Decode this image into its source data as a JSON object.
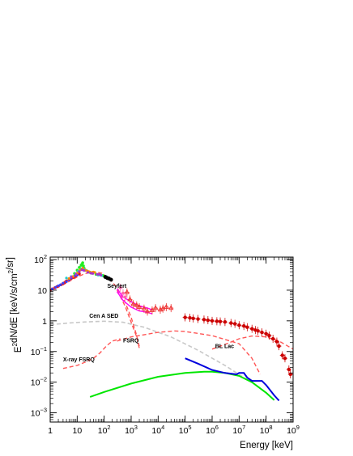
{
  "chart_data": {
    "type": "scatter",
    "title": "",
    "xlabel": "Energy [keV]",
    "ylabel": "E²dN/dE [keV/s/cm²/sr]",
    "x_scale": "log",
    "y_scale": "log",
    "xlim": [
      1,
      1000000000
    ],
    "ylim": [
      0.0005,
      120
    ],
    "grid": false,
    "x_ticks": [
      {
        "value": 1,
        "label": "1",
        "sup": ""
      },
      {
        "value": 10,
        "label": "10",
        "sup": ""
      },
      {
        "value": 100,
        "label": "10",
        "sup": "2"
      },
      {
        "value": 1000,
        "label": "10",
        "sup": "3"
      },
      {
        "value": 10000,
        "label": "10",
        "sup": "4"
      },
      {
        "value": 100000,
        "label": "10",
        "sup": "5"
      },
      {
        "value": 1000000,
        "label": "10",
        "sup": "6"
      },
      {
        "value": 10000000,
        "label": "10",
        "sup": "7"
      },
      {
        "value": 100000000,
        "label": "10",
        "sup": "8"
      },
      {
        "value": 1000000000,
        "label": "10",
        "sup": "9"
      }
    ],
    "y_ticks": [
      {
        "value": 0.001,
        "label": "10",
        "sup": "−3"
      },
      {
        "value": 0.01,
        "label": "10",
        "sup": "−2"
      },
      {
        "value": 0.1,
        "label": "10",
        "sup": "−1"
      },
      {
        "value": 1,
        "label": "1",
        "sup": ""
      },
      {
        "value": 10,
        "label": "10",
        "sup": ""
      },
      {
        "value": 100,
        "label": "10",
        "sup": "2"
      }
    ],
    "annotations": [
      {
        "text": "Seyfert",
        "x": 130,
        "y": 12
      },
      {
        "text": "Cen A SED",
        "x": 28,
        "y": 1.25
      },
      {
        "text": "FSRQ",
        "x": 500,
        "y": 0.2
      },
      {
        "text": "BL Lac",
        "x": 1300000,
        "y": 0.13
      },
      {
        "text": "X-ray FSRQ",
        "x": 3,
        "y": 0.048
      }
    ],
    "series": [
      {
        "id": "seyfert-curve",
        "kind": "line",
        "color": "#ff5555",
        "dash": "5,3",
        "width": 1.4,
        "points": [
          [
            1,
            10.5
          ],
          [
            3,
            15
          ],
          [
            10,
            27
          ],
          [
            20,
            35
          ],
          [
            40,
            40
          ],
          [
            80,
            36
          ],
          [
            150,
            25
          ],
          [
            300,
            12
          ],
          [
            600,
            4
          ],
          [
            1000,
            1.3
          ],
          [
            1500,
            0.4
          ],
          [
            2000,
            0.15
          ]
        ]
      },
      {
        "id": "seyfert-tail",
        "kind": "line",
        "color": "#ff5555",
        "dash": "5,3",
        "width": 1.4,
        "points": [
          [
            300,
            10
          ],
          [
            600,
            3
          ],
          [
            1000,
            0.9
          ],
          [
            1600,
            0.3
          ],
          [
            2000,
            0.13
          ]
        ]
      },
      {
        "id": "cena-sed",
        "kind": "line",
        "color": "#c8c8c8",
        "dash": "5,3",
        "width": 1.6,
        "points": [
          [
            1,
            0.75
          ],
          [
            5,
            0.85
          ],
          [
            20,
            0.92
          ],
          [
            100,
            0.97
          ],
          [
            500,
            0.9
          ],
          [
            3000,
            0.62
          ],
          [
            30000,
            0.3
          ],
          [
            300000,
            0.11
          ],
          [
            3000000,
            0.035
          ],
          [
            20000000,
            0.012
          ]
        ]
      },
      {
        "id": "fsrq",
        "kind": "line",
        "color": "#ff5555",
        "dash": "5,3",
        "width": 1.4,
        "points": [
          [
            300,
            0.22
          ],
          [
            1000,
            0.3
          ],
          [
            10000,
            0.42
          ],
          [
            40000,
            0.47
          ],
          [
            100000,
            0.45
          ],
          [
            1000000,
            0.33
          ],
          [
            10000000,
            0.18
          ],
          [
            30000000,
            0.06
          ],
          [
            60000000,
            0.018
          ]
        ]
      },
      {
        "id": "bllac",
        "kind": "line",
        "color": "#ff5555",
        "dash": "5,3",
        "width": 1.4,
        "points": [
          [
            1000000,
            0.12
          ],
          [
            3000000,
            0.17
          ],
          [
            10000000,
            0.26
          ],
          [
            30000000,
            0.32
          ],
          [
            100000000,
            0.3
          ],
          [
            300000000,
            0.22
          ],
          [
            1000000000,
            0.12
          ]
        ]
      },
      {
        "id": "xray-fsrq",
        "kind": "line",
        "color": "#ff5555",
        "dash": "5,3",
        "width": 1.4,
        "points": [
          [
            3,
            0.028
          ],
          [
            10,
            0.035
          ],
          [
            20,
            0.045
          ],
          [
            40,
            0.06
          ],
          [
            70,
            0.09
          ],
          [
            120,
            0.15
          ],
          [
            200,
            0.22
          ],
          [
            400,
            0.26
          ]
        ]
      },
      {
        "id": "green-model",
        "kind": "line",
        "color": "#00e600",
        "dash": "",
        "width": 2,
        "points": [
          [
            30,
            0.0033
          ],
          [
            100,
            0.0048
          ],
          [
            1000,
            0.009
          ],
          [
            10000,
            0.015
          ],
          [
            100000,
            0.02
          ],
          [
            500000,
            0.022
          ],
          [
            1000000,
            0.022
          ],
          [
            3000000,
            0.02
          ],
          [
            10000000,
            0.016
          ],
          [
            30000000,
            0.01
          ],
          [
            100000000,
            0.0045
          ],
          [
            200000000,
            0.0026
          ]
        ]
      },
      {
        "id": "blue-model",
        "kind": "line",
        "color": "#0000dd",
        "dash": "",
        "width": 2,
        "points": [
          [
            100000,
            0.06
          ],
          [
            300000,
            0.04
          ],
          [
            1000000,
            0.025
          ],
          [
            3000000,
            0.02
          ],
          [
            8000000,
            0.018
          ],
          [
            10000000,
            0.02
          ],
          [
            15000000,
            0.02
          ],
          [
            20000000,
            0.014
          ],
          [
            30000000,
            0.011
          ],
          [
            70000000,
            0.011
          ],
          [
            100000000,
            0.008
          ],
          [
            200000000,
            0.0037
          ],
          [
            300000000,
            0.0025
          ]
        ]
      },
      {
        "id": "magenta-upper",
        "kind": "line",
        "color": "#ff00ff",
        "dash": "",
        "width": 1.4,
        "points": [
          [
            300,
            11
          ],
          [
            500,
            6
          ],
          [
            1000,
            4.2
          ],
          [
            2000,
            3.1
          ],
          [
            4000,
            2.6
          ],
          [
            6000,
            2.3
          ]
        ]
      },
      {
        "id": "magenta-lower",
        "kind": "line",
        "color": "#ff00ff",
        "dash": "",
        "width": 1.4,
        "points": [
          [
            300,
            9
          ],
          [
            500,
            4.6
          ],
          [
            1000,
            2.8
          ],
          [
            2000,
            2.1
          ],
          [
            4000,
            1.9
          ],
          [
            6000,
            1.7
          ]
        ]
      },
      {
        "id": "red-points-xray",
        "kind": "points",
        "color": "#ee1111",
        "size": 1.8,
        "points": [
          [
            1,
            10
          ],
          [
            1.2,
            11
          ],
          [
            1.5,
            12
          ],
          [
            1.8,
            13
          ],
          [
            2,
            13.5
          ],
          [
            2.5,
            15
          ],
          [
            3,
            16.5
          ],
          [
            3.5,
            18
          ],
          [
            4,
            20
          ],
          [
            5,
            22
          ],
          [
            6,
            24
          ],
          [
            7,
            26
          ],
          [
            8,
            28
          ],
          [
            9,
            30
          ],
          [
            10,
            32
          ],
          [
            12,
            34
          ]
        ]
      },
      {
        "id": "blue-points",
        "kind": "points",
        "color": "#3344ff",
        "size": 1.6,
        "points": [
          [
            1.2,
            11
          ],
          [
            1.6,
            12.5
          ],
          [
            2,
            14
          ],
          [
            2.4,
            15
          ],
          [
            3,
            17
          ],
          [
            4,
            19
          ],
          [
            5,
            22
          ],
          [
            6,
            25
          ],
          [
            8,
            29
          ],
          [
            10,
            31
          ]
        ]
      },
      {
        "id": "green-points",
        "kind": "points",
        "color": "#22ee22",
        "size": 1.8,
        "points": [
          [
            8,
            35
          ],
          [
            10,
            45
          ],
          [
            12,
            55
          ],
          [
            14,
            65
          ],
          [
            15,
            70
          ],
          [
            16,
            78
          ],
          [
            17,
            62
          ],
          [
            18,
            52
          ],
          [
            20,
            45
          ],
          [
            25,
            40
          ],
          [
            30,
            38
          ],
          [
            35,
            36
          ],
          [
            50,
            33
          ],
          [
            70,
            32
          ],
          [
            90,
            30
          ]
        ]
      },
      {
        "id": "cyan-points",
        "kind": "points",
        "color": "#22cccc",
        "size": 1.6,
        "points": [
          [
            4,
            25
          ],
          [
            6,
            28
          ],
          [
            9,
            35
          ],
          [
            11,
            42
          ],
          [
            14,
            50
          ],
          [
            18,
            48
          ],
          [
            22,
            44
          ],
          [
            60,
            31
          ],
          [
            80,
            30
          ],
          [
            120,
            28
          ]
        ]
      },
      {
        "id": "orange-points",
        "kind": "points",
        "color": "#ff8800",
        "size": 1.6,
        "points": [
          [
            5,
            24
          ],
          [
            7,
            28
          ],
          [
            10,
            36
          ],
          [
            13,
            46
          ],
          [
            16,
            52
          ],
          [
            20,
            45
          ],
          [
            24,
            42
          ],
          [
            28,
            40
          ],
          [
            35,
            38
          ],
          [
            40,
            39
          ],
          [
            45,
            38
          ]
        ]
      },
      {
        "id": "purple-points",
        "kind": "points",
        "color": "#aa33cc",
        "size": 1.6,
        "points": [
          [
            6,
            27
          ],
          [
            9,
            33
          ],
          [
            12,
            40
          ],
          [
            15,
            46
          ],
          [
            18,
            44
          ],
          [
            25,
            38
          ],
          [
            32,
            36
          ],
          [
            38,
            35
          ],
          [
            55,
            33
          ],
          [
            65,
            33
          ],
          [
            75,
            31
          ]
        ]
      },
      {
        "id": "black-points",
        "kind": "points",
        "color": "#000000",
        "size": 2.4,
        "points": [
          [
            110,
            27
          ],
          [
            130,
            25
          ],
          [
            150,
            24
          ],
          [
            180,
            22
          ]
        ]
      },
      {
        "id": "fermi-red",
        "kind": "points",
        "color": "#cc0000",
        "size": 2.2,
        "errors": true,
        "points": [
          [
            100000,
            1.3
          ],
          [
            150000,
            1.25
          ],
          [
            200000,
            1.2
          ],
          [
            300000,
            1.15
          ],
          [
            500000,
            1.1
          ],
          [
            700000,
            1.05
          ],
          [
            1000000,
            1.0
          ],
          [
            1500000,
            0.97
          ],
          [
            2000000,
            0.95
          ],
          [
            3000000,
            0.92
          ],
          [
            5000000,
            0.85
          ],
          [
            7000000,
            0.8
          ],
          [
            10000000,
            0.72
          ],
          [
            15000000,
            0.68
          ],
          [
            20000000,
            0.62
          ],
          [
            30000000,
            0.55
          ],
          [
            40000000,
            0.5
          ],
          [
            50000000,
            0.47
          ],
          [
            70000000,
            0.42
          ],
          [
            100000000,
            0.38
          ],
          [
            130000000,
            0.33
          ],
          [
            180000000,
            0.26
          ],
          [
            250000000,
            0.21
          ],
          [
            300000000,
            0.15
          ],
          [
            400000000,
            0.075
          ],
          [
            500000000,
            0.06
          ],
          [
            700000000,
            0.026
          ],
          [
            800000000,
            0.018
          ]
        ]
      },
      {
        "id": "comptel-open",
        "kind": "open-points",
        "color": "#ee3333",
        "size": 2.4,
        "errors": true,
        "points": [
          [
            700,
            8.5
          ],
          [
            900,
            5
          ],
          [
            1200,
            3.5
          ],
          [
            1600,
            3.2
          ],
          [
            2000,
            2.8
          ],
          [
            3000,
            2.5
          ],
          [
            4000,
            2.0
          ],
          [
            6000,
            2.2
          ],
          [
            8000,
            2.6
          ],
          [
            12000,
            2.3
          ],
          [
            15000,
            2.5
          ],
          [
            20000,
            2.8
          ],
          [
            30000,
            2.6
          ]
        ]
      },
      {
        "id": "egret-pink",
        "kind": "points",
        "color": "#ff66aa",
        "size": 1.8,
        "errors": true,
        "points": [
          [
            400,
            12
          ],
          [
            500,
            8
          ],
          [
            600,
            6
          ]
        ]
      }
    ]
  }
}
